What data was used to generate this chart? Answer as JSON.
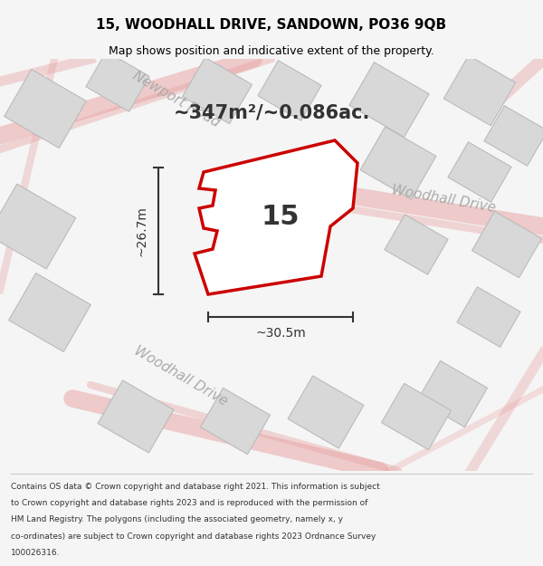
{
  "title": "15, WOODHALL DRIVE, SANDOWN, PO36 9QB",
  "subtitle": "Map shows position and indicative extent of the property.",
  "area_text": "~347m²/~0.086ac.",
  "width_label": "~30.5m",
  "height_label": "~26.7m",
  "property_number": "15",
  "footer_lines": [
    "Contains OS data © Crown copyright and database right 2021. This information is subject",
    "to Crown copyright and database rights 2023 and is reproduced with the permission of",
    "HM Land Registry. The polygons (including the associated geometry, namely x, y",
    "co-ordinates) are subject to Crown copyright and database rights 2023 Ordnance Survey",
    "100026316."
  ],
  "bg_color": "#f5f5f5",
  "map_bg": "#ffffff",
  "road_color": "#e8a0a0",
  "building_color": "#d8d8d8",
  "property_fill": "#ffffff",
  "property_edge": "#cc0000",
  "dim_line_color": "#333333",
  "title_color": "#000000",
  "footer_color": "#333333"
}
